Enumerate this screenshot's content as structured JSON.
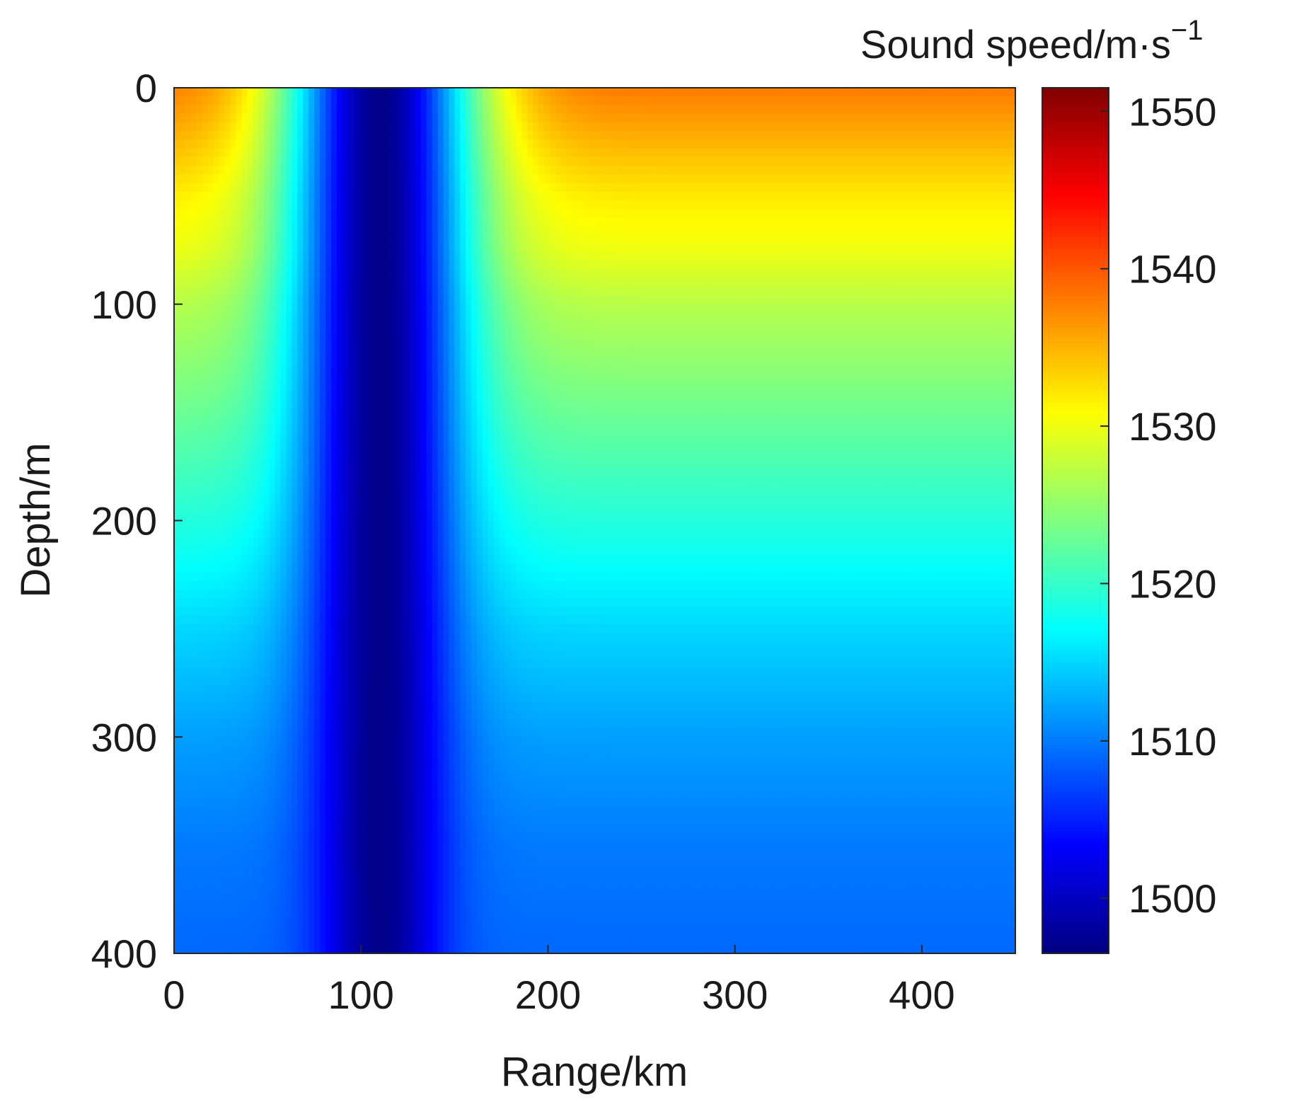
{
  "chart_data": {
    "type": "heatmap",
    "title": "",
    "xlabel": "Range/km",
    "ylabel": "Depth/m",
    "xlim": [
      0,
      450
    ],
    "ylim": [
      0,
      400
    ],
    "y_reversed": true,
    "x_ticks": [
      0,
      100,
      200,
      300,
      400
    ],
    "y_ticks": [
      0,
      100,
      200,
      300,
      400
    ],
    "x_tick_labels": [
      "0",
      "100",
      "200",
      "300",
      "400"
    ],
    "y_tick_labels": [
      "0",
      "100",
      "200",
      "300",
      "400"
    ],
    "colormap": "jet",
    "grid": false,
    "colorbar": {
      "title": "Sound speed/m·s",
      "title_superscript": "−1",
      "range": [
        1496.5,
        1551.5
      ],
      "ticks": [
        1500,
        1510,
        1520,
        1530,
        1540,
        1550
      ],
      "tick_labels": [
        "1500",
        "1510",
        "1520",
        "1530",
        "1540",
        "1550"
      ]
    },
    "background_profile": {
      "depth": [
        0,
        25,
        50,
        75,
        100,
        150,
        200,
        250,
        300,
        350,
        400
      ],
      "sound_speed": [
        1538,
        1535,
        1532,
        1530,
        1527,
        1523,
        1519,
        1515,
        1512,
        1510,
        1509
      ]
    },
    "anomaly": {
      "center_range": 110,
      "center_speed": 1497,
      "half_width_surface": 52,
      "half_width_bottom": 32
    }
  },
  "colors": {
    "frame": "#262626",
    "background": "#ffffff"
  }
}
